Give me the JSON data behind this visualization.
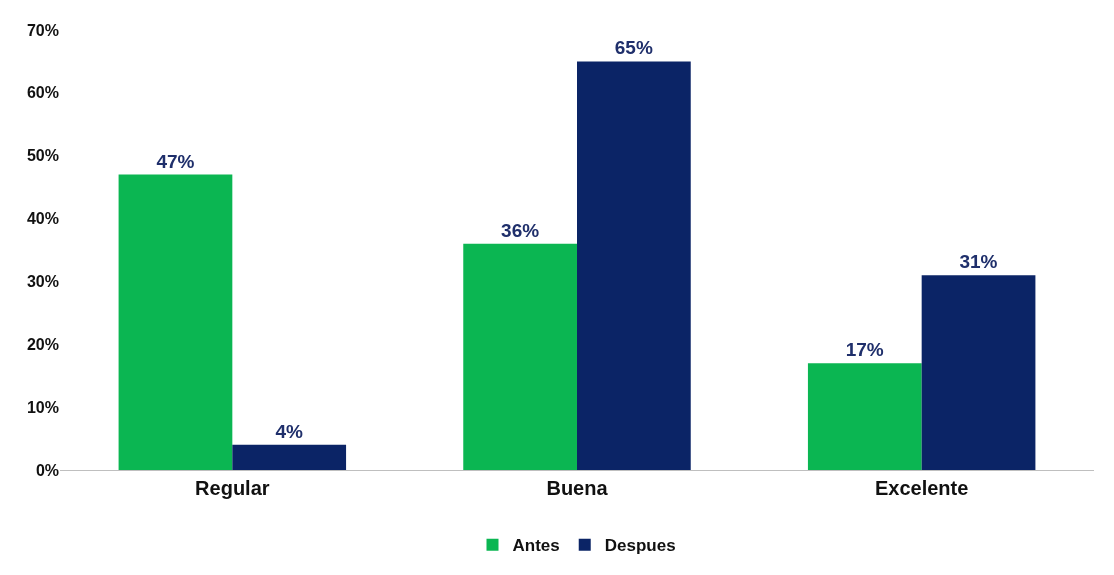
{
  "chart_data": {
    "type": "bar",
    "categories": [
      "Regular",
      "Buena",
      "Excelente"
    ],
    "series": [
      {
        "name": "Antes",
        "color": "#0bb652",
        "values": [
          47,
          36,
          17
        ],
        "value_labels": [
          "47%",
          "36%",
          "17%"
        ]
      },
      {
        "name": "Despues",
        "color": "#0b2466",
        "values": [
          4,
          65,
          31
        ],
        "value_labels": [
          "4%",
          "65%",
          "31%"
        ]
      }
    ],
    "ylim": [
      0,
      70
    ],
    "yticks": [
      {
        "value": 0,
        "label": "0%"
      },
      {
        "value": 10,
        "label": "10%"
      },
      {
        "value": 20,
        "label": "20%"
      },
      {
        "value": 30,
        "label": "30%"
      },
      {
        "value": 40,
        "label": "40%"
      },
      {
        "value": 50,
        "label": "50%"
      },
      {
        "value": 60,
        "label": "60%"
      },
      {
        "value": 70,
        "label": "70%"
      }
    ],
    "legend": "bottom"
  }
}
